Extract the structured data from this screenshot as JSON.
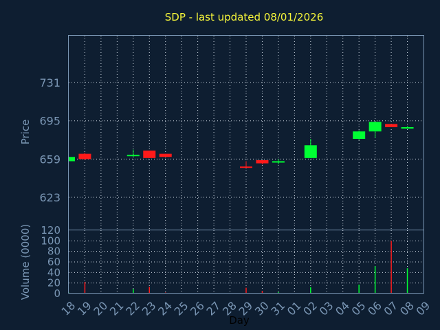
{
  "chart_data": [
    {
      "type": "candlestick",
      "title": "SDP - last updated 08/01/2026",
      "ylabel": "Price",
      "ylim": [
        592,
        775
      ],
      "yticks": [
        {
          "value": 623,
          "label": "623"
        },
        {
          "value": 659,
          "label": "659"
        },
        {
          "value": 695,
          "label": "695"
        },
        {
          "value": 731,
          "label": "731"
        }
      ],
      "grid": true,
      "x": [
        "18",
        "19",
        "20",
        "21",
        "22",
        "23",
        "24",
        "25",
        "26",
        "27",
        "28",
        "29",
        "30",
        "31",
        "01",
        "02",
        "03",
        "04",
        "05",
        "06",
        "07",
        "08",
        "09"
      ],
      "candles": [
        {
          "x": "18",
          "open": 657,
          "high": 661,
          "low": 657,
          "close": 661
        },
        {
          "x": "19",
          "open": 664,
          "high": 665,
          "low": 658,
          "close": 659
        },
        {
          "x": "22",
          "open": 662,
          "high": 668,
          "low": 661,
          "close": 663
        },
        {
          "x": "23",
          "open": 667,
          "high": 667,
          "low": 660,
          "close": 660
        },
        {
          "x": "24",
          "open": 664,
          "high": 664,
          "low": 661,
          "close": 661
        },
        {
          "x": "29",
          "open": 652,
          "high": 657,
          "low": 651,
          "close": 651
        },
        {
          "x": "30",
          "open": 658,
          "high": 658,
          "low": 654,
          "close": 655
        },
        {
          "x": "31",
          "open": 656,
          "high": 659,
          "low": 654,
          "close": 657
        },
        {
          "x": "02",
          "open": 660,
          "high": 678,
          "low": 660,
          "close": 672
        },
        {
          "x": "05",
          "open": 678,
          "high": 686,
          "low": 677,
          "close": 685
        },
        {
          "x": "06",
          "open": 685,
          "high": 694,
          "low": 679,
          "close": 694
        },
        {
          "x": "07",
          "open": 692,
          "high": 692,
          "low": 689,
          "close": 689
        },
        {
          "x": "08",
          "open": 688,
          "high": 690,
          "low": 688,
          "close": 689
        }
      ]
    },
    {
      "type": "bar",
      "ylabel": "Volume (0000)",
      "xlabel": "Day",
      "ylim": [
        0,
        120
      ],
      "yticks": [
        0,
        20,
        40,
        60,
        80,
        100,
        120
      ],
      "grid": true,
      "x": [
        "18",
        "19",
        "20",
        "21",
        "22",
        "23",
        "24",
        "25",
        "26",
        "27",
        "28",
        "29",
        "30",
        "31",
        "01",
        "02",
        "03",
        "04",
        "05",
        "06",
        "07",
        "08",
        "09"
      ],
      "series": [
        {
          "values": [
            {
              "x": "18",
              "value": 2,
              "direction": "up"
            },
            {
              "x": "19",
              "value": 22,
              "direction": "down"
            },
            {
              "x": "22",
              "value": 9,
              "direction": "up"
            },
            {
              "x": "23",
              "value": 13,
              "direction": "down"
            },
            {
              "x": "24",
              "value": 2,
              "direction": "down"
            },
            {
              "x": "29",
              "value": 11,
              "direction": "down"
            },
            {
              "x": "30",
              "value": 5,
              "direction": "down"
            },
            {
              "x": "31",
              "value": 3,
              "direction": "up"
            },
            {
              "x": "02",
              "value": 12,
              "direction": "up"
            },
            {
              "x": "05",
              "value": 17,
              "direction": "up"
            },
            {
              "x": "06",
              "value": 52,
              "direction": "up"
            },
            {
              "x": "07",
              "value": 100,
              "direction": "down"
            },
            {
              "x": "08",
              "value": 48,
              "direction": "up"
            }
          ]
        }
      ]
    }
  ],
  "colors": {
    "background": "#0e1e31",
    "up": "#00ff33",
    "down": "#ff1a1a",
    "title": "#f5f53a",
    "axis_text": "#7a96b4",
    "grid": "#cfd8e2"
  }
}
